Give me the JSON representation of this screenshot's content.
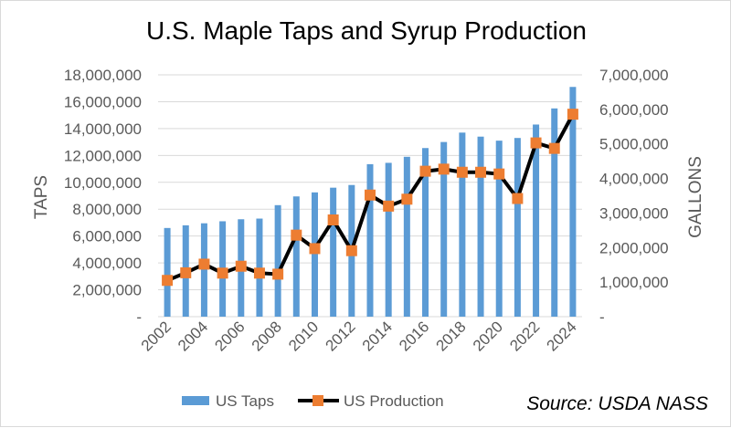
{
  "chart_data": {
    "type": "bar+line",
    "title": "U.S. Maple Taps and Syrup Production",
    "x": [
      2002,
      2003,
      2004,
      2005,
      2006,
      2007,
      2008,
      2009,
      2010,
      2011,
      2012,
      2013,
      2014,
      2015,
      2016,
      2017,
      2018,
      2019,
      2020,
      2021,
      2022,
      2023,
      2024
    ],
    "x_tick_labels": [
      "2002",
      "2004",
      "2006",
      "2008",
      "2010",
      "2012",
      "2014",
      "2016",
      "2018",
      "2020",
      "2022",
      "2024"
    ],
    "ylabel_left": "TAPS",
    "ylabel_right": "GALLONS",
    "ylim_left": [
      0,
      18000000
    ],
    "ylim_right": [
      0,
      7000000
    ],
    "y_ticks_left": [
      "-",
      "2,000,000",
      "4,000,000",
      "6,000,000",
      "8,000,000",
      "10,000,000",
      "12,000,000",
      "14,000,000",
      "16,000,000",
      "18,000,000"
    ],
    "y_ticks_right": [
      "-",
      "1,000,000",
      "2,000,000",
      "3,000,000",
      "4,000,000",
      "5,000,000",
      "6,000,000",
      "7,000,000"
    ],
    "series": [
      {
        "name": "US Taps",
        "type": "bar",
        "axis": "left",
        "color": "#5b9bd5",
        "values": [
          6600000,
          6800000,
          6950000,
          7100000,
          7250000,
          7300000,
          8300000,
          8950000,
          9250000,
          9600000,
          9800000,
          11350000,
          11450000,
          11900000,
          12550000,
          13000000,
          13700000,
          13400000,
          13100000,
          13300000,
          14300000,
          15500000,
          17100000
        ]
      },
      {
        "name": "US Production",
        "type": "line",
        "axis": "right",
        "line_color": "#000000",
        "marker_color": "#ed7d31",
        "values": [
          1050000,
          1270000,
          1520000,
          1260000,
          1460000,
          1260000,
          1230000,
          2360000,
          1970000,
          2800000,
          1910000,
          3520000,
          3200000,
          3400000,
          4210000,
          4270000,
          4180000,
          4180000,
          4130000,
          3420000,
          5030000,
          4870000,
          5860000
        ]
      }
    ],
    "source": "Source: USDA NASS",
    "grid": true,
    "legend": "bottom"
  }
}
